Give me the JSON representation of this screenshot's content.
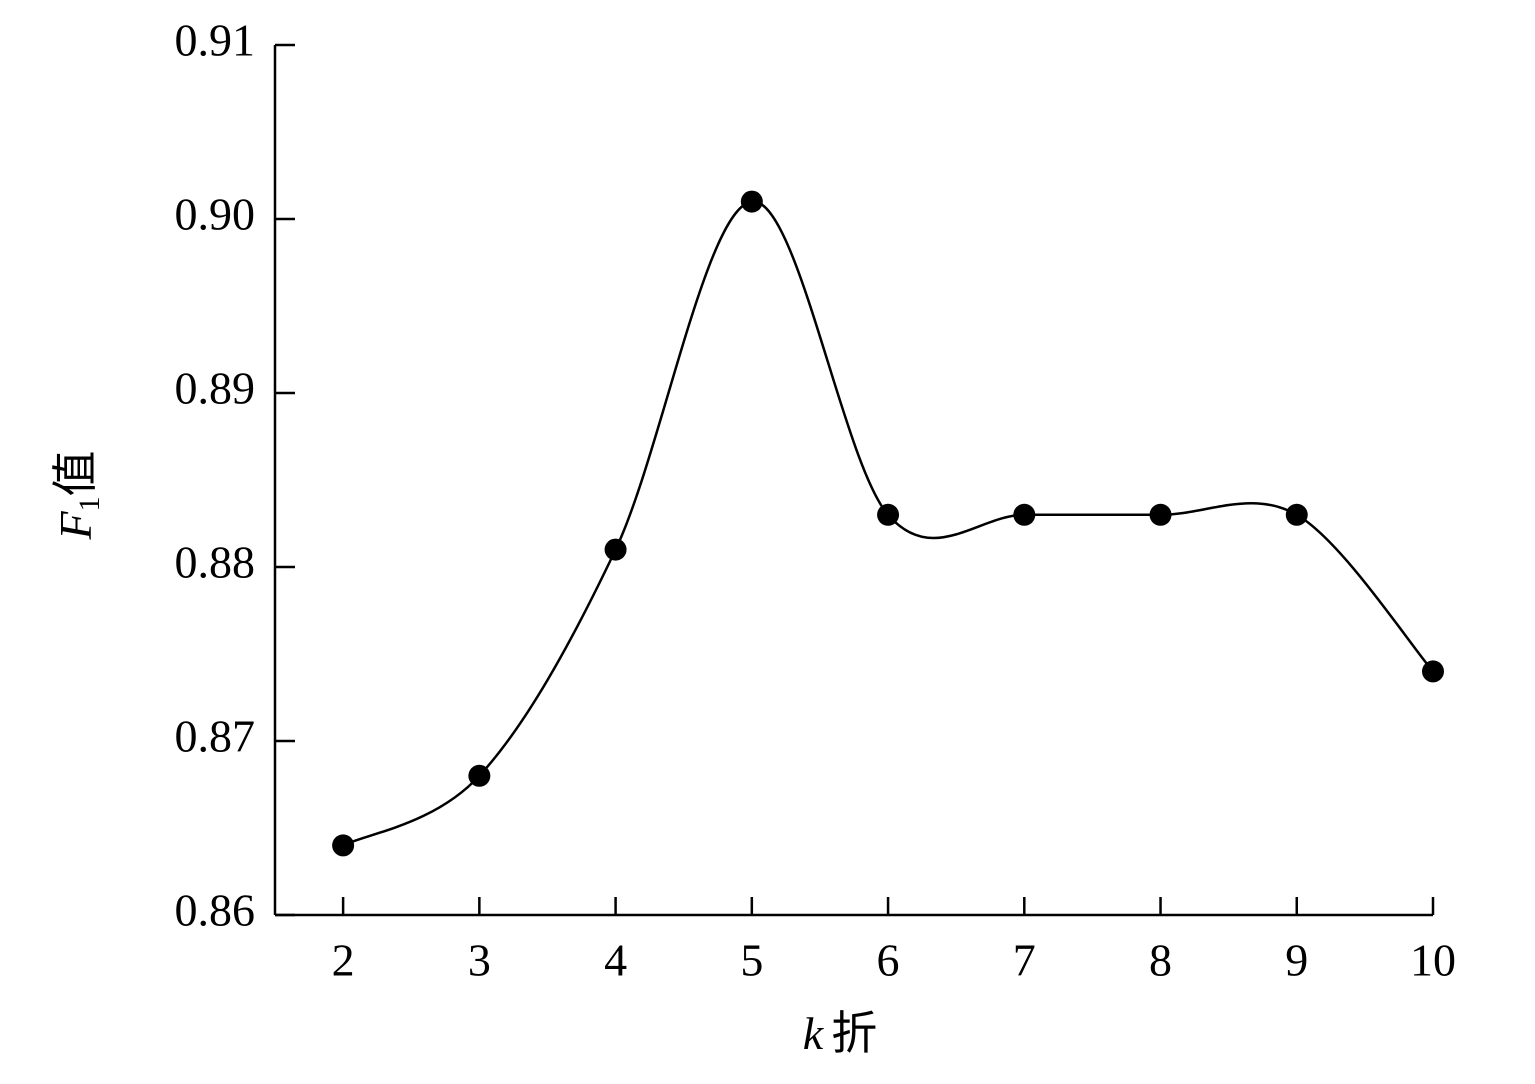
{
  "chart_data": {
    "type": "line",
    "x_label": {
      "symbol": "k",
      "text": "折"
    },
    "y_label": {
      "symbol": "F",
      "subscript": "1",
      "text": "值"
    },
    "x": [
      2,
      3,
      4,
      5,
      6,
      7,
      8,
      9,
      10
    ],
    "series": [
      {
        "color": "#000000",
        "values": [
          0.864,
          0.868,
          0.881,
          0.901,
          0.883,
          0.883,
          0.883,
          0.883,
          0.874
        ]
      }
    ],
    "xlim": [
      1.5,
      10
    ],
    "xticks": [
      2,
      3,
      4,
      5,
      6,
      7,
      8,
      9,
      10
    ],
    "ylim": [
      0.86,
      0.91
    ],
    "yticks": [
      0.86,
      0.87,
      0.88,
      0.89,
      {
        "value": 0.9,
        "label": "0.90"
      },
      0.91
    ],
    "smooth": true,
    "grid": false
  }
}
